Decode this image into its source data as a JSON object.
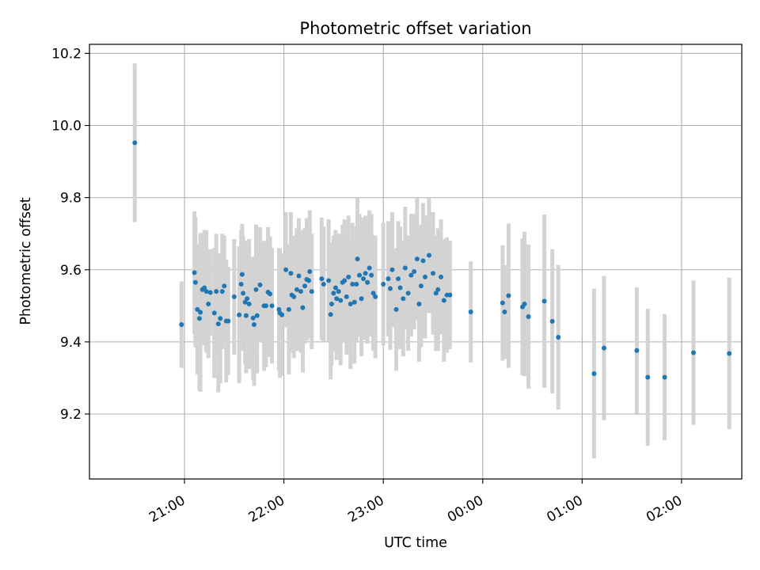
{
  "chart_data": {
    "type": "scatter",
    "title": "Photometric offset variation",
    "xlabel": "UTC time",
    "ylabel": "Photometric offset",
    "x_axis_kind": "time",
    "xlim_hours": [
      20.044,
      26.606
    ],
    "ylim": [
      9.02,
      10.225
    ],
    "xticks": [
      {
        "h": 21,
        "label": "21:00"
      },
      {
        "h": 22,
        "label": "22:00"
      },
      {
        "h": 23,
        "label": "23:00"
      },
      {
        "h": 24,
        "label": "00:00"
      },
      {
        "h": 25,
        "label": "01:00"
      },
      {
        "h": 26,
        "label": "02:00"
      }
    ],
    "yticks": [
      {
        "v": 9.2,
        "label": "9.2"
      },
      {
        "v": 9.4,
        "label": "9.4"
      },
      {
        "v": 9.6,
        "label": "9.6"
      },
      {
        "v": 9.8,
        "label": "9.8"
      },
      {
        "v": 10.0,
        "label": "10.0"
      },
      {
        "v": 10.2,
        "label": "10.2"
      }
    ],
    "grid": true,
    "marker_color": "#1f77b4",
    "errorbar_color": "#d3d3d3",
    "points": [
      [
        20.5,
        9.952,
        0.22
      ],
      [
        20.97,
        9.448,
        0.12
      ],
      [
        21.1,
        9.592,
        0.17
      ],
      [
        21.11,
        9.565,
        0.18
      ],
      [
        21.13,
        9.49,
        0.18
      ],
      [
        21.15,
        9.465,
        0.2
      ],
      [
        21.16,
        9.482,
        0.22
      ],
      [
        21.18,
        9.545,
        0.15
      ],
      [
        21.2,
        9.55,
        0.16
      ],
      [
        21.22,
        9.54,
        0.17
      ],
      [
        21.24,
        9.505,
        0.15
      ],
      [
        21.26,
        9.537,
        0.12
      ],
      [
        21.3,
        9.48,
        0.18
      ],
      [
        21.32,
        9.54,
        0.16
      ],
      [
        21.34,
        9.45,
        0.19
      ],
      [
        21.36,
        9.465,
        0.18
      ],
      [
        21.38,
        9.54,
        0.16
      ],
      [
        21.4,
        9.555,
        0.14
      ],
      [
        21.42,
        9.458,
        0.17
      ],
      [
        21.44,
        9.458,
        0.15
      ],
      [
        21.5,
        9.525,
        0.16
      ],
      [
        21.55,
        9.475,
        0.19
      ],
      [
        21.57,
        9.56,
        0.15
      ],
      [
        21.58,
        9.587,
        0.14
      ],
      [
        21.59,
        9.535,
        0.16
      ],
      [
        21.61,
        9.51,
        0.17
      ],
      [
        21.62,
        9.473,
        0.16
      ],
      [
        21.63,
        9.52,
        0.15
      ],
      [
        21.65,
        9.505,
        0.18
      ],
      [
        21.69,
        9.466,
        0.17
      ],
      [
        21.7,
        9.448,
        0.17
      ],
      [
        21.72,
        9.545,
        0.18
      ],
      [
        21.73,
        9.473,
        0.16
      ],
      [
        21.76,
        9.558,
        0.16
      ],
      [
        21.8,
        9.5,
        0.18
      ],
      [
        21.82,
        9.5,
        0.17
      ],
      [
        21.84,
        9.538,
        0.18
      ],
      [
        21.86,
        9.533,
        0.16
      ],
      [
        21.88,
        9.5,
        0.16
      ],
      [
        21.95,
        9.49,
        0.17
      ],
      [
        21.96,
        9.48,
        0.18
      ],
      [
        21.98,
        9.475,
        0.17
      ],
      [
        22.02,
        9.6,
        0.16
      ],
      [
        22.05,
        9.49,
        0.18
      ],
      [
        22.07,
        9.59,
        0.17
      ],
      [
        22.08,
        9.53,
        0.16
      ],
      [
        22.1,
        9.525,
        0.17
      ],
      [
        22.13,
        9.545,
        0.17
      ],
      [
        22.15,
        9.583,
        0.16
      ],
      [
        22.17,
        9.54,
        0.17
      ],
      [
        22.19,
        9.495,
        0.18
      ],
      [
        22.21,
        9.555,
        0.16
      ],
      [
        22.23,
        9.573,
        0.17
      ],
      [
        22.25,
        9.57,
        0.16
      ],
      [
        22.26,
        9.595,
        0.17
      ],
      [
        22.28,
        9.54,
        0.16
      ],
      [
        22.38,
        9.575,
        0.17
      ],
      [
        22.4,
        9.56,
        0.16
      ],
      [
        22.45,
        9.57,
        0.17
      ],
      [
        22.47,
        9.476,
        0.18
      ],
      [
        22.48,
        9.505,
        0.17
      ],
      [
        22.5,
        9.535,
        0.16
      ],
      [
        22.52,
        9.55,
        0.16
      ],
      [
        22.53,
        9.52,
        0.17
      ],
      [
        22.55,
        9.54,
        0.16
      ],
      [
        22.57,
        9.515,
        0.18
      ],
      [
        22.59,
        9.565,
        0.16
      ],
      [
        22.61,
        9.57,
        0.17
      ],
      [
        22.63,
        9.525,
        0.16
      ],
      [
        22.65,
        9.58,
        0.17
      ],
      [
        22.67,
        9.505,
        0.18
      ],
      [
        22.69,
        9.56,
        0.17
      ],
      [
        22.71,
        9.51,
        0.17
      ],
      [
        22.73,
        9.56,
        0.16
      ],
      [
        22.74,
        9.63,
        0.17
      ],
      [
        22.76,
        9.585,
        0.17
      ],
      [
        22.78,
        9.52,
        0.16
      ],
      [
        22.8,
        9.575,
        0.17
      ],
      [
        22.82,
        9.59,
        0.16
      ],
      [
        22.84,
        9.565,
        0.17
      ],
      [
        22.86,
        9.605,
        0.16
      ],
      [
        22.88,
        9.585,
        0.17
      ],
      [
        22.9,
        9.535,
        0.16
      ],
      [
        22.92,
        9.525,
        0.17
      ],
      [
        23.0,
        9.56,
        0.17
      ],
      [
        23.05,
        9.575,
        0.16
      ],
      [
        23.07,
        9.548,
        0.17
      ],
      [
        23.09,
        9.6,
        0.16
      ],
      [
        23.13,
        9.49,
        0.17
      ],
      [
        23.15,
        9.575,
        0.16
      ],
      [
        23.17,
        9.55,
        0.17
      ],
      [
        23.2,
        9.52,
        0.16
      ],
      [
        23.22,
        9.605,
        0.17
      ],
      [
        23.25,
        9.535,
        0.16
      ],
      [
        23.28,
        9.585,
        0.17
      ],
      [
        23.31,
        9.595,
        0.16
      ],
      [
        23.34,
        9.63,
        0.17
      ],
      [
        23.36,
        9.505,
        0.16
      ],
      [
        23.38,
        9.555,
        0.17
      ],
      [
        23.4,
        9.625,
        0.16
      ],
      [
        23.42,
        9.58,
        0.17
      ],
      [
        23.46,
        9.64,
        0.16
      ],
      [
        23.5,
        9.59,
        0.17
      ],
      [
        23.53,
        9.535,
        0.16
      ],
      [
        23.55,
        9.545,
        0.17
      ],
      [
        23.58,
        9.58,
        0.16
      ],
      [
        23.61,
        9.515,
        0.17
      ],
      [
        23.64,
        9.53,
        0.16
      ],
      [
        23.67,
        9.53,
        0.15
      ],
      [
        23.88,
        9.483,
        0.14
      ],
      [
        24.2,
        9.508,
        0.16
      ],
      [
        24.22,
        9.483,
        0.13
      ],
      [
        24.26,
        9.528,
        0.2
      ],
      [
        24.4,
        9.497,
        0.19
      ],
      [
        24.42,
        9.505,
        0.2
      ],
      [
        24.46,
        9.47,
        0.2
      ],
      [
        24.62,
        9.513,
        0.24
      ],
      [
        24.7,
        9.457,
        0.2
      ],
      [
        24.76,
        9.413,
        0.2
      ],
      [
        25.12,
        9.312,
        0.235
      ],
      [
        25.22,
        9.383,
        0.2
      ],
      [
        25.55,
        9.376,
        0.175
      ],
      [
        25.66,
        9.302,
        0.19
      ],
      [
        25.83,
        9.302,
        0.175
      ],
      [
        26.12,
        9.37,
        0.2
      ],
      [
        26.48,
        9.368,
        0.21
      ]
    ]
  }
}
